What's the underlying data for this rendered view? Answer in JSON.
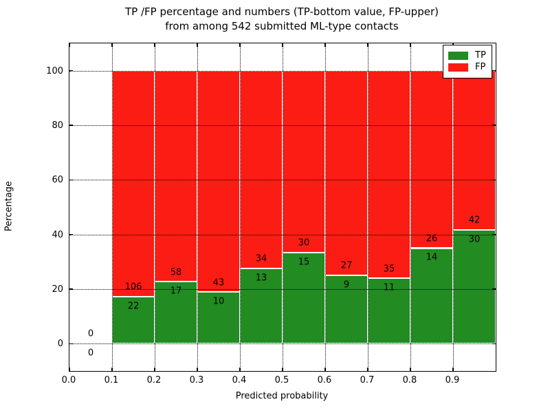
{
  "title": {
    "line1": "TP /FP percentage and numbers (TP-bottom value, FP-upper)",
    "line2": "from among 542 submitted ML-type contacts"
  },
  "axes": {
    "xlabel": "Predicted probability",
    "ylabel": "Percentage",
    "x_ticks": [
      "0.0",
      "0.1",
      "0.2",
      "0.3",
      "0.4",
      "0.5",
      "0.6",
      "0.7",
      "0.8",
      "0.9"
    ],
    "y_ticks": [
      "0",
      "20",
      "40",
      "60",
      "80",
      "100"
    ]
  },
  "legend": {
    "items": [
      {
        "label": "TP",
        "color": "#228b22"
      },
      {
        "label": "FP",
        "color": "#fb1c13"
      }
    ]
  },
  "colors": {
    "tp_green": "#228b22",
    "fp_red": "#fb1c13",
    "bar_edge": "#ffffff",
    "grid": "#000000"
  },
  "chart_data": {
    "type": "bar",
    "stacked": true,
    "title": "TP /FP percentage and numbers (TP-bottom value, FP-upper) from among 542 submitted ML-type contacts",
    "xlabel": "Predicted probability",
    "ylabel": "Percentage",
    "xlim": [
      0.0,
      1.0
    ],
    "ylim": [
      -10,
      110
    ],
    "grid": true,
    "legend_position": "upper right",
    "total_contacts": 542,
    "bin_edges": [
      0.0,
      0.1,
      0.2,
      0.3,
      0.4,
      0.5,
      0.6,
      0.7,
      0.8,
      0.9,
      1.0
    ],
    "categories": [
      "0.0-0.1",
      "0.1-0.2",
      "0.2-0.3",
      "0.3-0.4",
      "0.4-0.5",
      "0.5-0.6",
      "0.6-0.7",
      "0.7-0.8",
      "0.8-0.9",
      "0.9-1.0"
    ],
    "series": [
      {
        "name": "TP",
        "counts": [
          0,
          22,
          17,
          10,
          13,
          15,
          9,
          11,
          14,
          30
        ],
        "percent": [
          0,
          17.19,
          22.67,
          18.87,
          27.66,
          33.33,
          25.0,
          23.91,
          35.0,
          41.67
        ]
      },
      {
        "name": "FP",
        "counts": [
          0,
          106,
          58,
          43,
          34,
          30,
          27,
          35,
          26,
          42
        ],
        "percent": [
          0,
          82.81,
          77.33,
          81.13,
          72.34,
          66.67,
          75.0,
          76.09,
          65.0,
          58.33
        ]
      }
    ],
    "label_note": "TP count printed below TP/FP boundary, FP count printed above boundary"
  }
}
